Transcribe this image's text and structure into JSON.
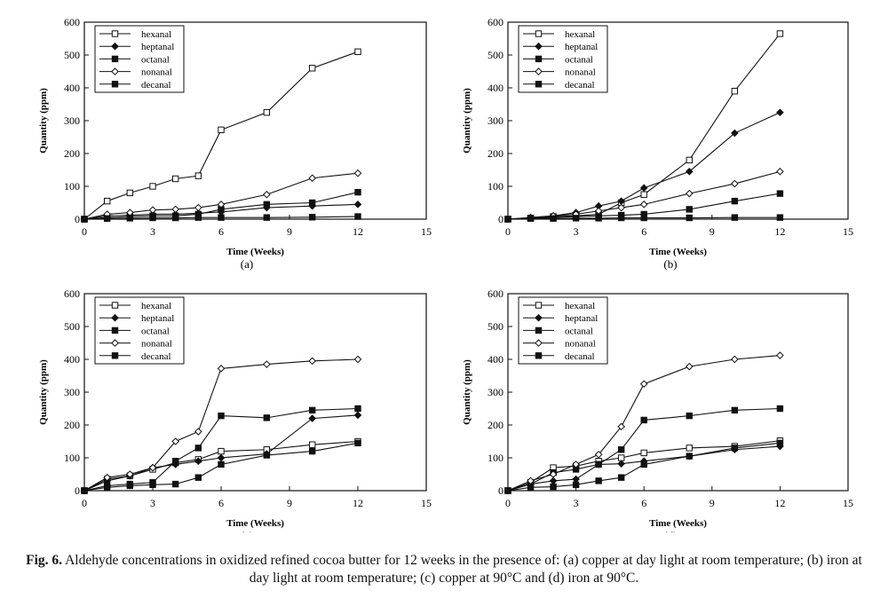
{
  "chart_data": [
    {
      "type": "line",
      "panel_label": "(a)",
      "xlabel": "Time (Weeks)",
      "ylabel": "Quantity (ppm)",
      "xlim": [
        0,
        15
      ],
      "ylim": [
        0,
        600
      ],
      "xticks": [
        0,
        3,
        6,
        9,
        12,
        15
      ],
      "yticks": [
        0,
        100,
        200,
        300,
        400,
        500,
        600
      ],
      "legend_position": "top-left",
      "series": [
        {
          "name": "hexanal",
          "marker": "square-open",
          "x": [
            0,
            1,
            2,
            3,
            4,
            5,
            6,
            8,
            10,
            12
          ],
          "values": [
            0,
            55,
            80,
            100,
            123,
            132,
            272,
            325,
            460,
            510
          ]
        },
        {
          "name": "heptanal",
          "marker": "diamond-filled",
          "x": [
            0,
            1,
            2,
            3,
            4,
            5,
            6,
            8,
            10,
            12
          ],
          "values": [
            0,
            10,
            12,
            15,
            15,
            18,
            22,
            35,
            40,
            45
          ]
        },
        {
          "name": "octanal",
          "marker": "square-filled",
          "x": [
            0,
            1,
            2,
            3,
            4,
            5,
            6,
            8,
            10,
            12
          ],
          "values": [
            0,
            5,
            8,
            10,
            10,
            15,
            30,
            45,
            50,
            82
          ]
        },
        {
          "name": "nonanal",
          "marker": "diamond-open",
          "x": [
            0,
            1,
            2,
            3,
            4,
            5,
            6,
            8,
            10,
            12
          ],
          "values": [
            0,
            15,
            20,
            28,
            30,
            35,
            45,
            75,
            125,
            140
          ]
        },
        {
          "name": "decanal",
          "marker": "square-filled",
          "x": [
            0,
            1,
            2,
            3,
            4,
            5,
            6,
            8,
            10,
            12
          ],
          "values": [
            0,
            2,
            3,
            4,
            4,
            5,
            5,
            5,
            6,
            8
          ]
        }
      ]
    },
    {
      "type": "line",
      "panel_label": "(b)",
      "xlabel": "Time (Weeks)",
      "ylabel": "Quantity (ppm)",
      "xlim": [
        0,
        15
      ],
      "ylim": [
        0,
        600
      ],
      "xticks": [
        0,
        3,
        6,
        9,
        12,
        15
      ],
      "yticks": [
        0,
        100,
        200,
        300,
        400,
        500,
        600
      ],
      "legend_position": "top-left",
      "series": [
        {
          "name": "hexanal",
          "marker": "square-open",
          "x": [
            0,
            1,
            2,
            3,
            4,
            5,
            6,
            8,
            10,
            12
          ],
          "values": [
            0,
            3,
            8,
            10,
            15,
            50,
            75,
            180,
            390,
            565
          ]
        },
        {
          "name": "heptanal",
          "marker": "diamond-filled",
          "x": [
            0,
            1,
            2,
            3,
            4,
            5,
            6,
            8,
            10,
            12
          ],
          "values": [
            0,
            5,
            10,
            20,
            40,
            55,
            95,
            145,
            262,
            325
          ]
        },
        {
          "name": "octanal",
          "marker": "square-filled",
          "x": [
            0,
            1,
            2,
            3,
            4,
            5,
            6,
            8,
            10,
            12
          ],
          "values": [
            0,
            3,
            5,
            8,
            10,
            12,
            15,
            30,
            55,
            78
          ]
        },
        {
          "name": "nonanal",
          "marker": "diamond-open",
          "x": [
            0,
            1,
            2,
            3,
            4,
            5,
            6,
            8,
            10,
            12
          ],
          "values": [
            0,
            5,
            10,
            15,
            25,
            35,
            45,
            78,
            108,
            145
          ]
        },
        {
          "name": "decanal",
          "marker": "square-filled",
          "x": [
            0,
            1,
            2,
            3,
            4,
            5,
            6,
            8,
            10,
            12
          ],
          "values": [
            0,
            2,
            2,
            3,
            3,
            4,
            4,
            4,
            5,
            5
          ]
        }
      ]
    },
    {
      "type": "line",
      "panel_label": "(c)",
      "xlabel": "Time (Weeks)",
      "ylabel": "Quantity (ppm)",
      "xlim": [
        0,
        15
      ],
      "ylim": [
        0,
        600
      ],
      "xticks": [
        0,
        3,
        6,
        9,
        12,
        15
      ],
      "yticks": [
        0,
        100,
        200,
        300,
        400,
        500,
        600
      ],
      "legend_position": "top-left",
      "series": [
        {
          "name": "hexanal",
          "marker": "square-open",
          "x": [
            0,
            1,
            2,
            3,
            4,
            5,
            6,
            8,
            10,
            12
          ],
          "values": [
            0,
            35,
            45,
            65,
            85,
            95,
            120,
            125,
            140,
            150
          ]
        },
        {
          "name": "heptanal",
          "marker": "diamond-filled",
          "x": [
            0,
            1,
            2,
            3,
            4,
            5,
            6,
            8,
            10,
            12
          ],
          "values": [
            0,
            30,
            45,
            70,
            80,
            90,
            100,
            112,
            220,
            230
          ]
        },
        {
          "name": "octanal",
          "marker": "square-filled",
          "x": [
            0,
            1,
            2,
            3,
            4,
            5,
            6,
            8,
            10,
            12
          ],
          "values": [
            0,
            15,
            20,
            25,
            90,
            130,
            228,
            222,
            245,
            250
          ]
        },
        {
          "name": "nonanal",
          "marker": "diamond-open",
          "x": [
            0,
            1,
            2,
            3,
            4,
            5,
            6,
            8,
            10,
            12
          ],
          "values": [
            0,
            40,
            50,
            70,
            150,
            180,
            372,
            385,
            395,
            400
          ]
        },
        {
          "name": "decanal",
          "marker": "square-filled",
          "x": [
            0,
            1,
            2,
            3,
            4,
            5,
            6,
            8,
            10,
            12
          ],
          "values": [
            0,
            10,
            15,
            18,
            20,
            40,
            80,
            108,
            120,
            145
          ]
        }
      ]
    },
    {
      "type": "line",
      "panel_label": "(d)",
      "xlabel": "Time (Weeks)",
      "ylabel": "Quantity (ppm)",
      "xlim": [
        0,
        15
      ],
      "ylim": [
        0,
        600
      ],
      "xticks": [
        0,
        3,
        6,
        9,
        12,
        15
      ],
      "yticks": [
        0,
        100,
        200,
        300,
        400,
        500,
        600
      ],
      "legend_position": "top-left",
      "series": [
        {
          "name": "hexanal",
          "marker": "square-open",
          "x": [
            0,
            1,
            2,
            3,
            4,
            5,
            6,
            8,
            10,
            12
          ],
          "values": [
            0,
            25,
            70,
            75,
            90,
            100,
            115,
            130,
            135,
            152
          ]
        },
        {
          "name": "heptanal",
          "marker": "diamond-filled",
          "x": [
            0,
            1,
            2,
            3,
            4,
            5,
            6,
            8,
            10,
            12
          ],
          "values": [
            0,
            20,
            30,
            35,
            80,
            82,
            90,
            105,
            125,
            135
          ]
        },
        {
          "name": "octanal",
          "marker": "square-filled",
          "x": [
            0,
            1,
            2,
            3,
            4,
            5,
            6,
            8,
            10,
            12
          ],
          "values": [
            0,
            20,
            55,
            65,
            80,
            125,
            215,
            228,
            245,
            250
          ]
        },
        {
          "name": "nonanal",
          "marker": "diamond-open",
          "x": [
            0,
            1,
            2,
            3,
            4,
            5,
            6,
            8,
            10,
            12
          ],
          "values": [
            0,
            30,
            50,
            80,
            110,
            195,
            325,
            378,
            400,
            412
          ]
        },
        {
          "name": "decanal",
          "marker": "square-filled",
          "x": [
            0,
            1,
            2,
            3,
            4,
            5,
            6,
            8,
            10,
            12
          ],
          "values": [
            0,
            10,
            12,
            18,
            30,
            40,
            80,
            105,
            130,
            145
          ]
        }
      ]
    }
  ],
  "caption": {
    "label": "Fig. 6.",
    "text": "Aldehyde concentrations in oxidized refined cocoa butter for 12 weeks in the presence of: (a) copper at day light at room temperature; (b) iron at day light at room temperature; (c) copper at 90°C and (d) iron at 90°C."
  }
}
